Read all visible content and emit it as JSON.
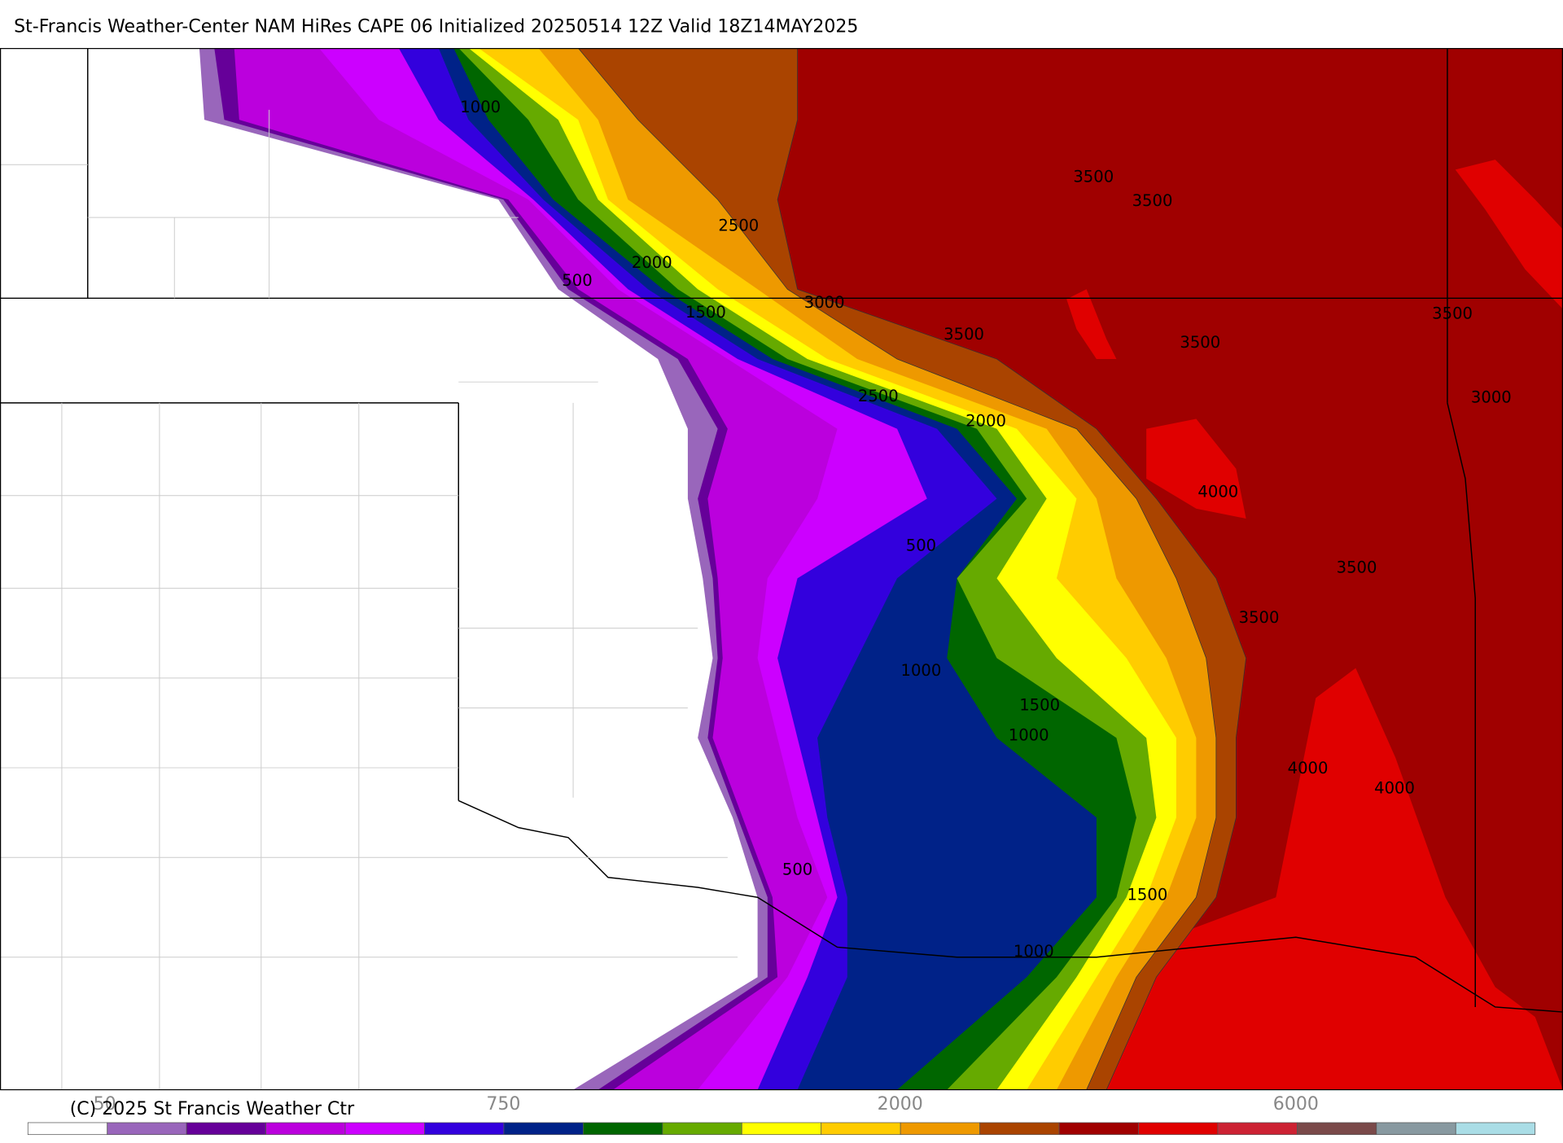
{
  "title": "St-Francis Weather-Center NAM HiRes CAPE  06 Initialized 20250514 12Z Valid 18Z14MAY2025",
  "copyright": "(C) 2025 St Francis Weather Ctr",
  "contour_labels": [
    1000,
    2500,
    2000,
    500,
    1500,
    3000,
    3500,
    3500,
    3500,
    3500,
    3500,
    3000,
    2500,
    2000,
    4000,
    500,
    3500,
    3500,
    1000,
    1500,
    1000,
    4000,
    4000,
    500,
    1500,
    1000
  ],
  "colorbar": {
    "colors": [
      "#ffffff",
      "#9966bb",
      "#660099",
      "#bb00dd",
      "#cc00ff",
      "#3300dd",
      "#002288",
      "#006600",
      "#66aa00",
      "#ffff00",
      "#ffcc00",
      "#ee9900",
      "#aa4400",
      "#a00000",
      "#e00000",
      "#cc2233",
      "#7a4a4a",
      "#8899a0",
      "#aadde6"
    ],
    "tick_labels": [
      50,
      750,
      2000,
      6000
    ]
  }
}
